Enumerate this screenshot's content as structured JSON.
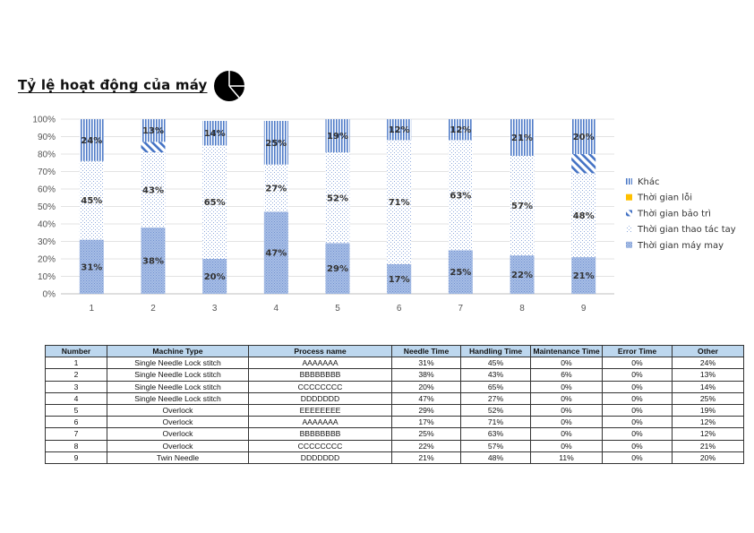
{
  "header": {
    "title": "Tỷ lệ hoạt động của máy",
    "icon": "pie-chart-icon"
  },
  "chart_data": {
    "type": "bar",
    "stacked": true,
    "categories": [
      "1",
      "2",
      "3",
      "4",
      "5",
      "6",
      "7",
      "8",
      "9"
    ],
    "ylim": [
      0,
      100
    ],
    "yticks": [
      "0%",
      "10%",
      "20%",
      "30%",
      "40%",
      "50%",
      "60%",
      "70%",
      "80%",
      "90%",
      "100%"
    ],
    "legend_position": "right",
    "series": [
      {
        "name": "Thời gian máy may",
        "values": [
          31,
          38,
          20,
          47,
          29,
          17,
          25,
          22,
          21
        ],
        "color": "#8faadc",
        "pattern": "dense-dots"
      },
      {
        "name": "Thời gian thao tác tay",
        "values": [
          45,
          43,
          65,
          27,
          52,
          71,
          63,
          57,
          48
        ],
        "color": "#8faadc",
        "pattern": "sparse-dots"
      },
      {
        "name": "Thời gian bảo trì",
        "values": [
          0,
          6,
          0,
          0,
          0,
          0,
          0,
          0,
          11
        ],
        "color": "#4472c4",
        "pattern": "diagonal"
      },
      {
        "name": "Thời gian lỗi",
        "values": [
          0,
          0,
          0,
          0,
          0,
          0,
          0,
          0,
          0
        ],
        "color": "#ffc000",
        "pattern": "solid"
      },
      {
        "name": "Khác",
        "values": [
          24,
          13,
          14,
          25,
          19,
          12,
          12,
          21,
          20
        ],
        "color": "#4472c4",
        "pattern": "vertical"
      }
    ],
    "data_labels": [
      [
        "31%",
        "38%",
        "20%",
        "47%",
        "29%",
        "17%",
        "25%",
        "22%",
        "21%"
      ],
      [
        "45%",
        "43%",
        "65%",
        "27%",
        "52%",
        "71%",
        "63%",
        "57%",
        "48%"
      ],
      [
        "",
        "",
        "",
        "",
        "",
        "",
        "",
        "",
        ""
      ],
      [
        "",
        "",
        "",
        "",
        "",
        "",
        "",
        "",
        ""
      ],
      [
        "24%",
        "13%",
        "14%",
        "25%",
        "19%",
        "12%",
        "12%",
        "21%",
        "20%"
      ]
    ]
  },
  "table": {
    "headers": [
      "Number",
      "Machine Type",
      "Process name",
      "Needle Time",
      "Handling Time",
      "Maintenance Time",
      "Error Time",
      "Other"
    ],
    "rows": [
      [
        "1",
        "Single Needle Lock stitch",
        "AAAAAAA",
        "31%",
        "45%",
        "0%",
        "0%",
        "24%"
      ],
      [
        "2",
        "Single Needle Lock stitch",
        "BBBBBBBB",
        "38%",
        "43%",
        "6%",
        "0%",
        "13%"
      ],
      [
        "3",
        "Single Needle Lock stitch",
        "CCCCCCCC",
        "20%",
        "65%",
        "0%",
        "0%",
        "14%"
      ],
      [
        "4",
        "Single Needle Lock stitch",
        "DDDDDDD",
        "47%",
        "27%",
        "0%",
        "0%",
        "25%"
      ],
      [
        "5",
        "Overlock",
        "EEEEEEEE",
        "29%",
        "52%",
        "0%",
        "0%",
        "19%"
      ],
      [
        "6",
        "Overlock",
        "AAAAAAA",
        "17%",
        "71%",
        "0%",
        "0%",
        "12%"
      ],
      [
        "7",
        "Overlock",
        "BBBBBBBB",
        "25%",
        "63%",
        "0%",
        "0%",
        "12%"
      ],
      [
        "8",
        "Overlock",
        "CCCCCCCC",
        "22%",
        "57%",
        "0%",
        "0%",
        "21%"
      ],
      [
        "9",
        "Twin Needle",
        "DDDDDDD",
        "21%",
        "48%",
        "11%",
        "0%",
        "20%"
      ]
    ]
  }
}
